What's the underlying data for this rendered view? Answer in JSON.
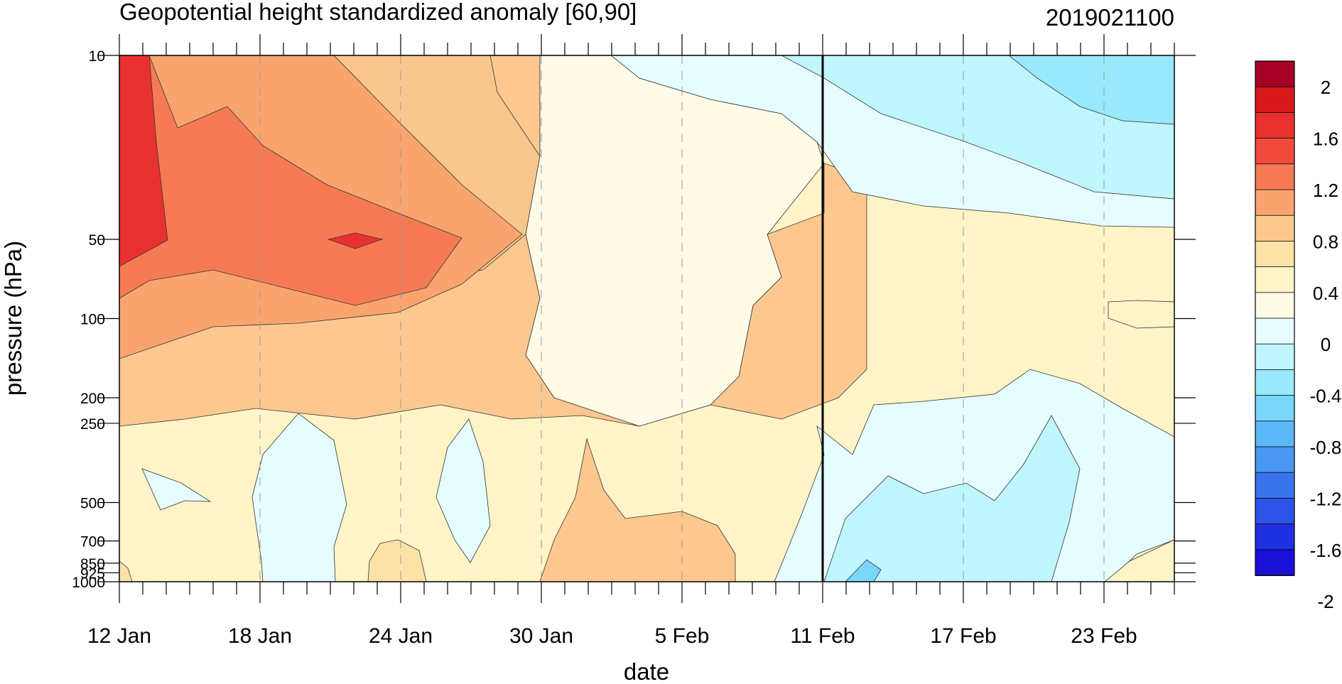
{
  "chart_data": {
    "type": "heatmap",
    "title": "Geopotential height standardized anomaly [60,90]",
    "date_label": "2019021100",
    "xlabel": "date",
    "ylabel": "pressure (hPa)",
    "x_ticks": [
      "12 Jan",
      "18 Jan",
      "24 Jan",
      "30 Jan",
      "5 Feb",
      "11 Feb",
      "17 Feb",
      "23 Feb"
    ],
    "x_range": [
      "12 Jan",
      "26 Feb"
    ],
    "y_ticks": [
      10,
      50,
      100,
      200,
      250,
      500,
      700,
      850,
      925,
      1000
    ],
    "y_tick_labels": [
      "10",
      "50",
      "100",
      "200",
      "250",
      "500",
      "700",
      "850",
      "925",
      "1000"
    ],
    "y_range": [
      10,
      1000
    ],
    "y_scale": "pressure (log, inverted)",
    "current_date_line": "11 Feb",
    "grid": "dashed vertical lines at major date ticks",
    "colorbar": {
      "labels": [
        "2",
        "1.6",
        "1.2",
        "0.8",
        "0.4",
        "0",
        "-0.4",
        "-0.8",
        "-1.2",
        "-1.6",
        "-2"
      ],
      "colors": [
        "#a50026",
        "#d7191c",
        "#e8312e",
        "#f24a3d",
        "#f67b55",
        "#f9a46f",
        "#fcc88f",
        "#fde2a8",
        "#fff3c8",
        "#fffbe6",
        "#e6fdff",
        "#bff5fd",
        "#99e9fc",
        "#78d7fa",
        "#5bb8f7",
        "#4a98f2",
        "#3a74ec",
        "#2d52e7",
        "#1f30e0",
        "#1a0fd6"
      ]
    }
  }
}
